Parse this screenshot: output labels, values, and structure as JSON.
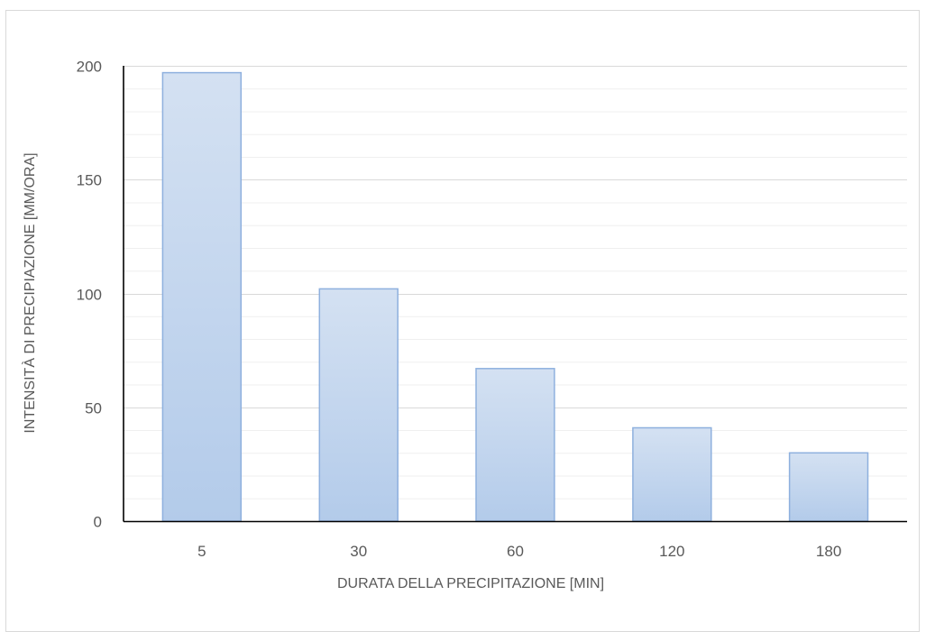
{
  "chart_data": {
    "type": "bar",
    "title": "",
    "xlabel": "DURATA DELLA PRECIPITAZIONE [MIN]",
    "ylabel": "INTENSITÀ DI PRECIPIAZIONE [MM/ORA]",
    "categories": [
      "5",
      "30",
      "60",
      "120",
      "180"
    ],
    "values": [
      197,
      102,
      67,
      41,
      30
    ],
    "ylim": [
      0,
      200
    ],
    "yticks": [
      0,
      50,
      100,
      150,
      200
    ],
    "minor_step": 10,
    "grid": true,
    "legend": "none",
    "colors": {
      "bar_top": "#d4e1f2",
      "bar_bottom": "#b3cbea",
      "bar_edge": "#8eb0de",
      "major_grid": "#d9d9d9",
      "minor_grid": "#efefef",
      "axis": "#000000",
      "text": "#595959"
    }
  }
}
